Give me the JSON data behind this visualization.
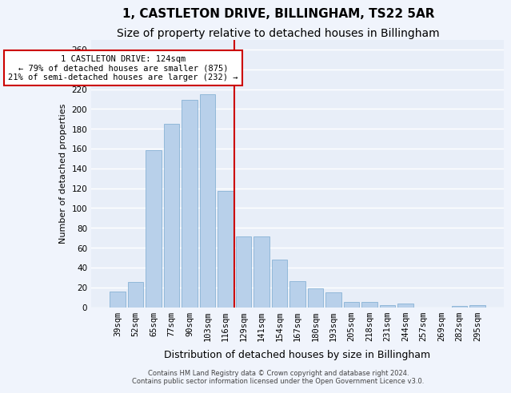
{
  "title": "1, CASTLETON DRIVE, BILLINGHAM, TS22 5AR",
  "subtitle": "Size of property relative to detached houses in Billingham",
  "xlabel": "Distribution of detached houses by size in Billingham",
  "ylabel": "Number of detached properties",
  "categories": [
    "39sqm",
    "52sqm",
    "65sqm",
    "77sqm",
    "90sqm",
    "103sqm",
    "116sqm",
    "129sqm",
    "141sqm",
    "154sqm",
    "167sqm",
    "180sqm",
    "193sqm",
    "205sqm",
    "218sqm",
    "231sqm",
    "244sqm",
    "257sqm",
    "269sqm",
    "282sqm",
    "295sqm"
  ],
  "values": [
    16,
    25,
    158,
    185,
    209,
    215,
    117,
    71,
    71,
    48,
    26,
    19,
    15,
    5,
    5,
    2,
    4,
    0,
    0,
    1,
    2
  ],
  "bar_color": "#b8d0ea",
  "bar_edge_color": "#7aaad0",
  "annotation_line1": "1 CASTLETON DRIVE: 124sqm",
  "annotation_line2": "← 79% of detached houses are smaller (875)",
  "annotation_line3": "21% of semi-detached houses are larger (232) →",
  "annotation_box_facecolor": "#ffffff",
  "annotation_box_edgecolor": "#cc0000",
  "vline_color": "#cc0000",
  "footer1": "Contains HM Land Registry data © Crown copyright and database right 2024.",
  "footer2": "Contains public sector information licensed under the Open Government Licence v3.0.",
  "bg_color": "#e8eef8",
  "ylim": [
    0,
    270
  ],
  "yticks": [
    0,
    20,
    40,
    60,
    80,
    100,
    120,
    140,
    160,
    180,
    200,
    220,
    240,
    260
  ],
  "grid_color": "#ffffff",
  "vline_pos": 6.5,
  "title_fontsize": 11,
  "subtitle_fontsize": 10,
  "xlabel_fontsize": 9,
  "ylabel_fontsize": 8,
  "tick_fontsize": 7.5,
  "annotation_fontsize": 7.5,
  "footer_fontsize": 6
}
